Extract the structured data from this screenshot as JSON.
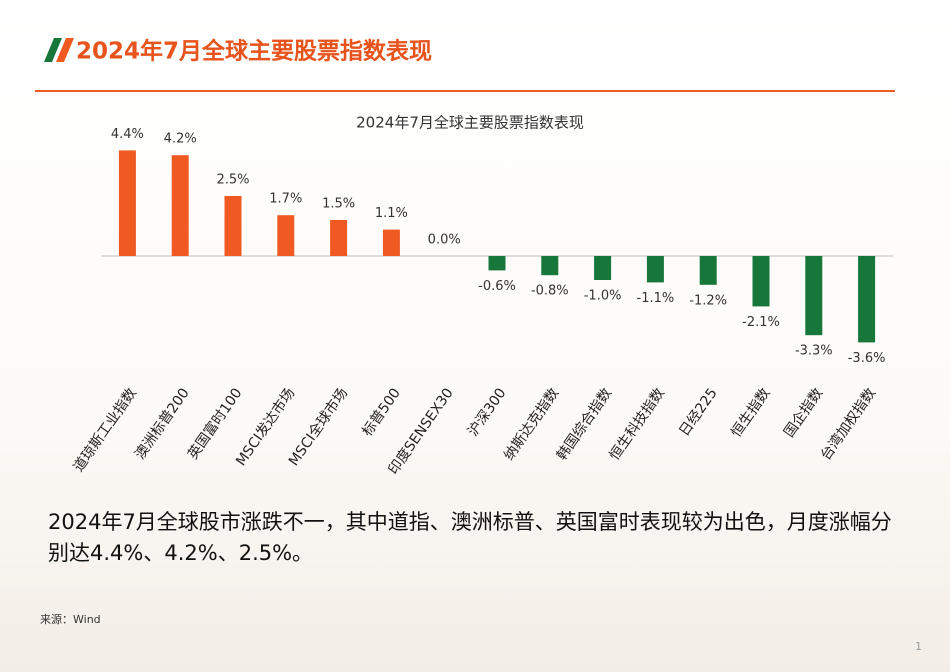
{
  "header": {
    "title": "2024年7月全球主要股票指数表现"
  },
  "chart_data": {
    "type": "bar",
    "title": "2024年7月全球主要股票指数表现",
    "categories": [
      "道琼斯工业指数",
      "澳洲标普200",
      "英国富时100",
      "MSCI发达市场",
      "MSCI全球市场",
      "标普500",
      "印度SENSEX30",
      "沪深300",
      "纳斯达克指数",
      "韩国综合指数",
      "恒生科技指数",
      "日经225",
      "恒生指数",
      "国企指数",
      "台湾加权指数"
    ],
    "values": [
      4.4,
      4.2,
      2.5,
      1.7,
      1.5,
      1.1,
      0.0,
      -0.6,
      -0.8,
      -1.0,
      -1.1,
      -1.2,
      -2.1,
      -3.3,
      -3.6
    ],
    "value_labels": [
      "4.4%",
      "4.2%",
      "2.5%",
      "1.7%",
      "1.5%",
      "1.1%",
      "0.0%",
      "-0.6%",
      "-0.8%",
      "-1.0%",
      "-1.1%",
      "-1.2%",
      "-2.1%",
      "-3.3%",
      "-3.6%"
    ],
    "positive_color": "#f05a22",
    "negative_color": "#17773b",
    "ylim": [
      -4,
      5
    ],
    "grid": false
  },
  "summary": "2024年7月全球股市涨跌不一，其中道指、澳洲标普、英国富时表现较为出色，月度涨幅分别达4.4%、4.2%、2.5%。",
  "source": "来源：Wind",
  "page_number": "1"
}
